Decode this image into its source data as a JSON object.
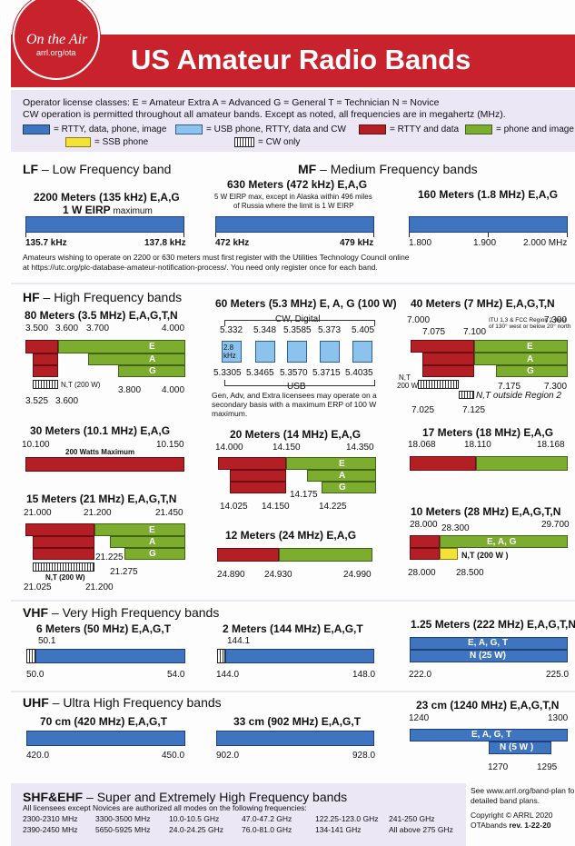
{
  "logo": {
    "line1": "On the Air",
    "line2": "arrl.org/ota"
  },
  "title": "US Amateur Radio Bands",
  "intro": {
    "line1": "Operator license classes: E = Amateur Extra  A = Advanced  G = General  T = Technician  N = Novice",
    "line2": "CW operation is permitted throughout all amateur bands. Except as noted, all frequencies are in megahertz (MHz).",
    "legend": {
      "blue": "= RTTY, data, phone, image",
      "lblue": "= USB phone, RTTY, data and CW",
      "red": "= RTTY and data",
      "green": "= phone and image",
      "yellow": "= SSB phone",
      "cw": "= CW only"
    }
  },
  "lf": {
    "heading": "LF",
    "heading_rest": " – Low Frequency band",
    "b2200": {
      "title": "2200 Meters (135 kHz)  E,A,G",
      "sub": "1 W EIRP",
      "sub2": " maximum",
      "lo": "135.7 kHz",
      "hi": "137.8 kHz"
    }
  },
  "mf": {
    "heading": "MF",
    "heading_rest": " – Medium Frequency bands",
    "b630": {
      "title": "630 Meters (472 kHz)  E,A,G",
      "note1": "5 W EIRP max, except in Alaska within 496 miles",
      "note2": "of Russia where the limit is 1 W EIRP",
      "lo": "472 kHz",
      "hi": "479 kHz"
    },
    "b160": {
      "title": "160 Meters (1.8 MHz)  E,A,G",
      "t1": "1.800",
      "t2": "1.900",
      "t3": "2.000 MHz"
    },
    "footnote1": "Amateurs wishing to operate on 2200 or 630 meters must first register with the Utilities Technology Council online",
    "footnote2": "at https://utc.org/plc-database-amateur-notification-process/. You need only register once for each band."
  },
  "hf": {
    "heading": "HF",
    "heading_rest": " – High Frequency bands",
    "b80": {
      "title": "80 Meters (3.5 MHz)  E,A,G,T,N",
      "t1": "3.500",
      "t2": "3.600",
      "t3": "3.700",
      "t4": "4.000",
      "t5": "3.800",
      "t6": "4.000",
      "t7": "3.525",
      "t8": "3.600",
      "nt": "N,T (200 W)",
      "e": "E",
      "a": "A",
      "g": "G"
    },
    "b60": {
      "title": "60 Meters (5.3 MHz) E, A, G (100 W)",
      "cw": "CW, Digital",
      "usb": "USB",
      "k1": "5.332",
      "k2": "5.348",
      "k3": "5.3585",
      "k4": "5.373",
      "k5": "5.405",
      "l1": "5.3305",
      "l2": "5.3465",
      "l3": "5.3570",
      "l4": "5.3715",
      "l5": "5.4035",
      "bw": "2.8 kHz",
      "note": "Gen, Adv, and Extra licensees may operate on a secondary basis with a maximum ERP of 100 W maximum."
    },
    "b40": {
      "title": "40 Meters (7 MHz)  E,A,G,T,N",
      "t1": "7.000",
      "t2": "7.300",
      "t3": "7.075",
      "t4": "7.100",
      "itu": "ITU 1,3 & FCC Region 2 west of 130° west or below 20° north",
      "t5": "7.175",
      "t6": "7.300",
      "t7": "7.025",
      "t8": "7.125",
      "nt": "N,T",
      "nt2": "200 W",
      "out": "N,T outside Region 2",
      "e": "E",
      "a": "A",
      "g": "G"
    },
    "b30": {
      "title": "30 Meters (10.1 MHz)  E,A,G",
      "lo": "10.100",
      "hi": "10.150",
      "note": "200 Watts Maximum"
    },
    "b20": {
      "title": "20 Meters (14 MHz)  E,A,G",
      "t1": "14.000",
      "t2": "14.150",
      "t3": "14.350",
      "t4": "14.175",
      "t5": "14.025",
      "t6": "14.150",
      "t7": "14.225",
      "e": "E",
      "a": "A",
      "g": "G"
    },
    "b17": {
      "title": "17 Meters (18 MHz)  E,A,G",
      "t1": "18.068",
      "t2": "18.110",
      "t3": "18.168"
    },
    "b15": {
      "title": "15 Meters (21 MHz)  E,A,G,T,N",
      "t1": "21.000",
      "t2": "21.200",
      "t3": "21.450",
      "t4": "21.225",
      "t5": "21.275",
      "t6": "21.025",
      "t7": "21.200",
      "nt": "N,T (200 W)",
      "e": "E",
      "a": "A",
      "g": "G"
    },
    "b12": {
      "title": "12 Meters (24 MHz)  E,A,G",
      "t1": "24.890",
      "t2": "24.930",
      "t3": "24.990"
    },
    "b10": {
      "title": "10 Meters (28 MHz)  E,A,G,T,N",
      "t1": "28.000",
      "t2": "28.300",
      "t3": "29.700",
      "eag": "E, A, G",
      "nt": "N,T (200 W )",
      "t4": "28.000",
      "t5": "28.500"
    }
  },
  "vhf": {
    "heading": "VHF",
    "heading_rest": " – Very High Frequency bands",
    "b6": {
      "title": "6 Meters (50 MHz) E,A,G,T",
      "t1": "50.1",
      "lo": "50.0",
      "hi": "54.0"
    },
    "b2": {
      "title": "2 Meters (144 MHz)  E,A,G,T",
      "t1": "144.1",
      "lo": "144.0",
      "hi": "148.0"
    },
    "b125": {
      "title": "1.25 Meters (222 MHz) E,A,G,T,N",
      "eagt": "E, A, G, T",
      "n": "N (25 W)",
      "lo": "222.0",
      "hi": "225.0"
    }
  },
  "uhf": {
    "heading": "UHF",
    "heading_rest": " – Ultra High Frequency bands",
    "b70": {
      "title": "70 cm (420 MHz)  E,A,G,T",
      "lo": "420.0",
      "hi": "450.0"
    },
    "b33": {
      "title": "33 cm (902 MHz) E,A,G,T",
      "lo": "902.0",
      "hi": "928.0"
    },
    "b23": {
      "title": "23 cm (1240 MHz) E,A,G,T,N",
      "t1": "1240",
      "t2": "1300",
      "eagt": "E, A, G, T",
      "n": "N (5 W )",
      "t3": "1270",
      "t4": "1295"
    }
  },
  "shf": {
    "heading": "SHF&EHF",
    "heading_rest": " – Super and Extremely High Frequency bands",
    "sub": "All licensees except Novices are authorized all modes on the following frequencies:",
    "freqs": [
      "2300-2310 MHz",
      "2390-2450 MHz",
      "3300-3500 MHz",
      "5650-5925 MHz",
      "10.0-10.5 GHz",
      "24.0-24.25 GHz",
      "47.0-47.2 GHz",
      "76.0-81.0 GHz",
      "122.25-123.0 GHz",
      "134-141 GHz",
      "241-250 GHz",
      "All above 275 GHz"
    ]
  },
  "footer": {
    "plan1": "See www.arrl.org/band-plan fo",
    "plan2": "detailed band plans.",
    "copy": "Copyright © ARRL 2020",
    "ver1": "OTAbands ",
    "ver2": "rev. 1-22-20"
  }
}
